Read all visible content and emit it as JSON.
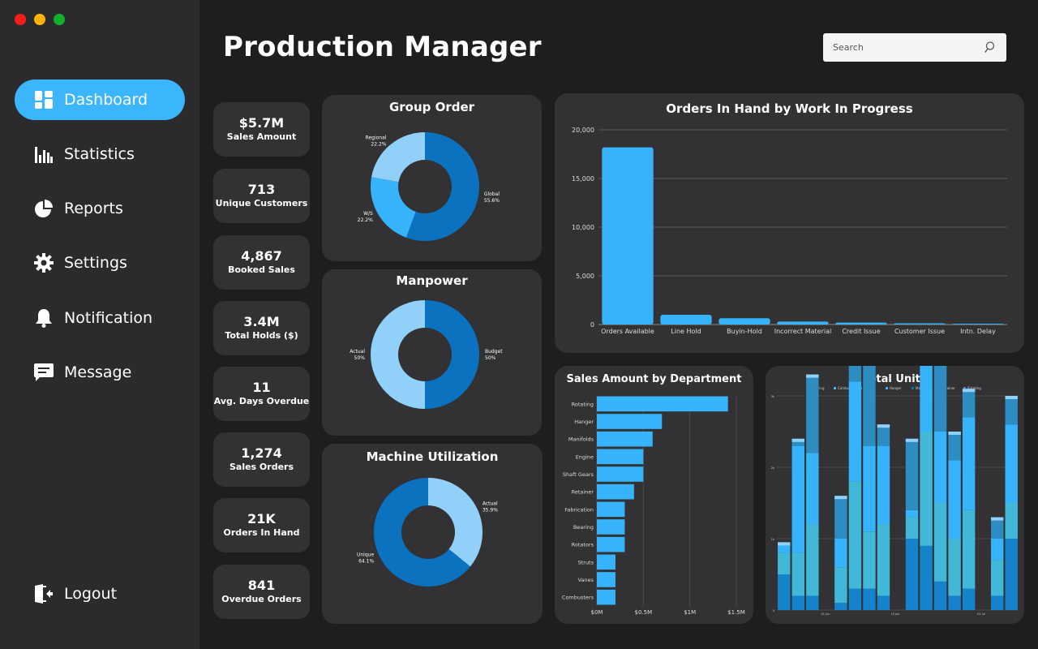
{
  "app": {
    "title": "Production Manager",
    "window_controls": [
      "close",
      "minimize",
      "maximize"
    ]
  },
  "colors": {
    "accent": "#3bb5fb",
    "dark_blue": "#0a72be",
    "light_blue": "#91d0f8",
    "mid_blue": "#2fa9f5",
    "sidebar_bg": "#2b2b2d",
    "panel_bg": "#323234",
    "page_bg": "#1e1e1e"
  },
  "search": {
    "placeholder": "Search",
    "icon": "search-icon"
  },
  "sidebar": {
    "items": [
      {
        "label": "Dashboard",
        "icon": "dashboard-icon",
        "active": true
      },
      {
        "label": "Statistics",
        "icon": "bar-chart-icon",
        "active": false
      },
      {
        "label": "Reports",
        "icon": "pie-chart-icon",
        "active": false
      },
      {
        "label": "Settings",
        "icon": "gear-icon",
        "active": false
      },
      {
        "label": "Notification",
        "icon": "bell-icon",
        "active": false
      },
      {
        "label": "Message",
        "icon": "message-icon",
        "active": false
      }
    ],
    "logout": {
      "label": "Logout",
      "icon": "logout-icon"
    }
  },
  "kpis": [
    {
      "value": "$5.7M",
      "label": "Sales Amount"
    },
    {
      "value": "713",
      "label": "Unique Customers"
    },
    {
      "value": "4,867",
      "label": "Booked Sales"
    },
    {
      "value": "3.4M",
      "label": "Total Holds ($)"
    },
    {
      "value": "11",
      "label": "Avg. Days Overdue"
    },
    {
      "value": "1,274",
      "label": "Sales Orders"
    },
    {
      "value": "21K",
      "label": "Orders In Hand"
    },
    {
      "value": "841",
      "label": "Overdue Orders"
    }
  ],
  "chart_data": [
    {
      "type": "pie",
      "title": "Group Order",
      "donut": true,
      "slices": [
        {
          "label": "Global",
          "value": 55.6,
          "display": "55.6%",
          "color": "#0a72be"
        },
        {
          "label": "W/S",
          "value": 22.2,
          "display": "22.2%",
          "color": "#36b3fb"
        },
        {
          "label": "Regional",
          "value": 22.2,
          "display": "22.2%",
          "color": "#91d0f8"
        }
      ]
    },
    {
      "type": "pie",
      "title": "Manpower",
      "donut": true,
      "slices": [
        {
          "label": "Budget",
          "value": 50,
          "display": "50%",
          "color": "#0a72be"
        },
        {
          "label": "Actual",
          "value": 50,
          "display": "50%",
          "color": "#91d0f8"
        }
      ]
    },
    {
      "type": "pie",
      "title": "Machine Utilization",
      "donut": true,
      "slices": [
        {
          "label": "Actual",
          "value": 35.9,
          "display": "35.9%",
          "color": "#91d0f8"
        },
        {
          "label": "Unique",
          "value": 64.1,
          "display": "64.1%",
          "color": "#0a72be"
        }
      ]
    },
    {
      "type": "bar",
      "title": "Orders In Hand by Work In Progress",
      "categories": [
        "Orders Available",
        "Line Hold",
        "Buyin-Hold",
        "Incorrect Material",
        "Credit Issue",
        "Customer Issue",
        "Intn. Delay"
      ],
      "values": [
        18200,
        1000,
        650,
        300,
        200,
        120,
        80
      ],
      "ylim": [
        0,
        20000
      ],
      "yticks": [
        0,
        5000,
        10000,
        15000,
        20000
      ],
      "ytick_labels": [
        "0",
        "5,000",
        "10,000",
        "15,000",
        "20,000"
      ],
      "color": "#36b3fb"
    },
    {
      "type": "bar",
      "orientation": "horizontal",
      "title": "Sales Amount by Department",
      "categories": [
        "Rotating",
        "Hanger",
        "Manifolds",
        "Engine",
        "Shaft Gears",
        "Retainer",
        "Fabrication",
        "Bearing",
        "Rotators",
        "Struts",
        "Vanes",
        "Combusters"
      ],
      "values": [
        1.41,
        0.7,
        0.6,
        0.5,
        0.5,
        0.4,
        0.3,
        0.3,
        0.3,
        0.2,
        0.2,
        0.2
      ],
      "xlim": [
        0,
        1.5
      ],
      "xticks": [
        0,
        0.5,
        1,
        1.5
      ],
      "xtick_labels": [
        "$0M",
        "$0.5M",
        "$1M",
        "$1.5M"
      ],
      "color": "#36b3fb"
    },
    {
      "type": "bar",
      "stacked": true,
      "title": "Total Units",
      "legend": [
        "Bearing",
        "Combusters",
        "Engine",
        "Hanger",
        "Manifolds",
        "Retainer",
        "Rotating"
      ],
      "legend_position": "top",
      "ylim": [
        0,
        3
      ],
      "yticks": [
        0,
        1,
        2,
        3
      ],
      "ytick_labels": [
        "0",
        "1k",
        "2k",
        "3k"
      ],
      "xtick_labels": [
        "01 Jun",
        "15 Jun",
        "01 Jul"
      ],
      "bars": [
        [
          0.5,
          0.3,
          0.15,
          0.0
        ],
        [
          0.2,
          0.6,
          1.5,
          0.1
        ],
        [
          0.2,
          1.0,
          1.0,
          1.1
        ],
        [
          0.0,
          0.0,
          0.0,
          0.0
        ],
        [
          0.1,
          0.5,
          0.4,
          0.6
        ],
        [
          0.3,
          1.5,
          1.4,
          1.4
        ],
        [
          0.3,
          0.8,
          1.2,
          2.7
        ],
        [
          0.2,
          1.0,
          1.1,
          0.3
        ],
        [
          0.0,
          0.0,
          0.0,
          0.0
        ],
        [
          1.0,
          0.3,
          0.1,
          1.0
        ],
        [
          0.9,
          1.6,
          1.4,
          0.4
        ],
        [
          0.4,
          1.1,
          1.0,
          1.8
        ],
        [
          0.2,
          0.8,
          1.1,
          0.4
        ],
        [
          0.3,
          1.1,
          1.3,
          0.4
        ],
        [
          0.0,
          0.0,
          0.0,
          0.0
        ],
        [
          0.2,
          0.5,
          0.3,
          0.3
        ],
        [
          1.0,
          0.5,
          1.1,
          0.4
        ]
      ],
      "stack_colors": [
        "#1582cc",
        "#42b8d8",
        "#36b3fb",
        "#2d8cc0"
      ]
    }
  ]
}
